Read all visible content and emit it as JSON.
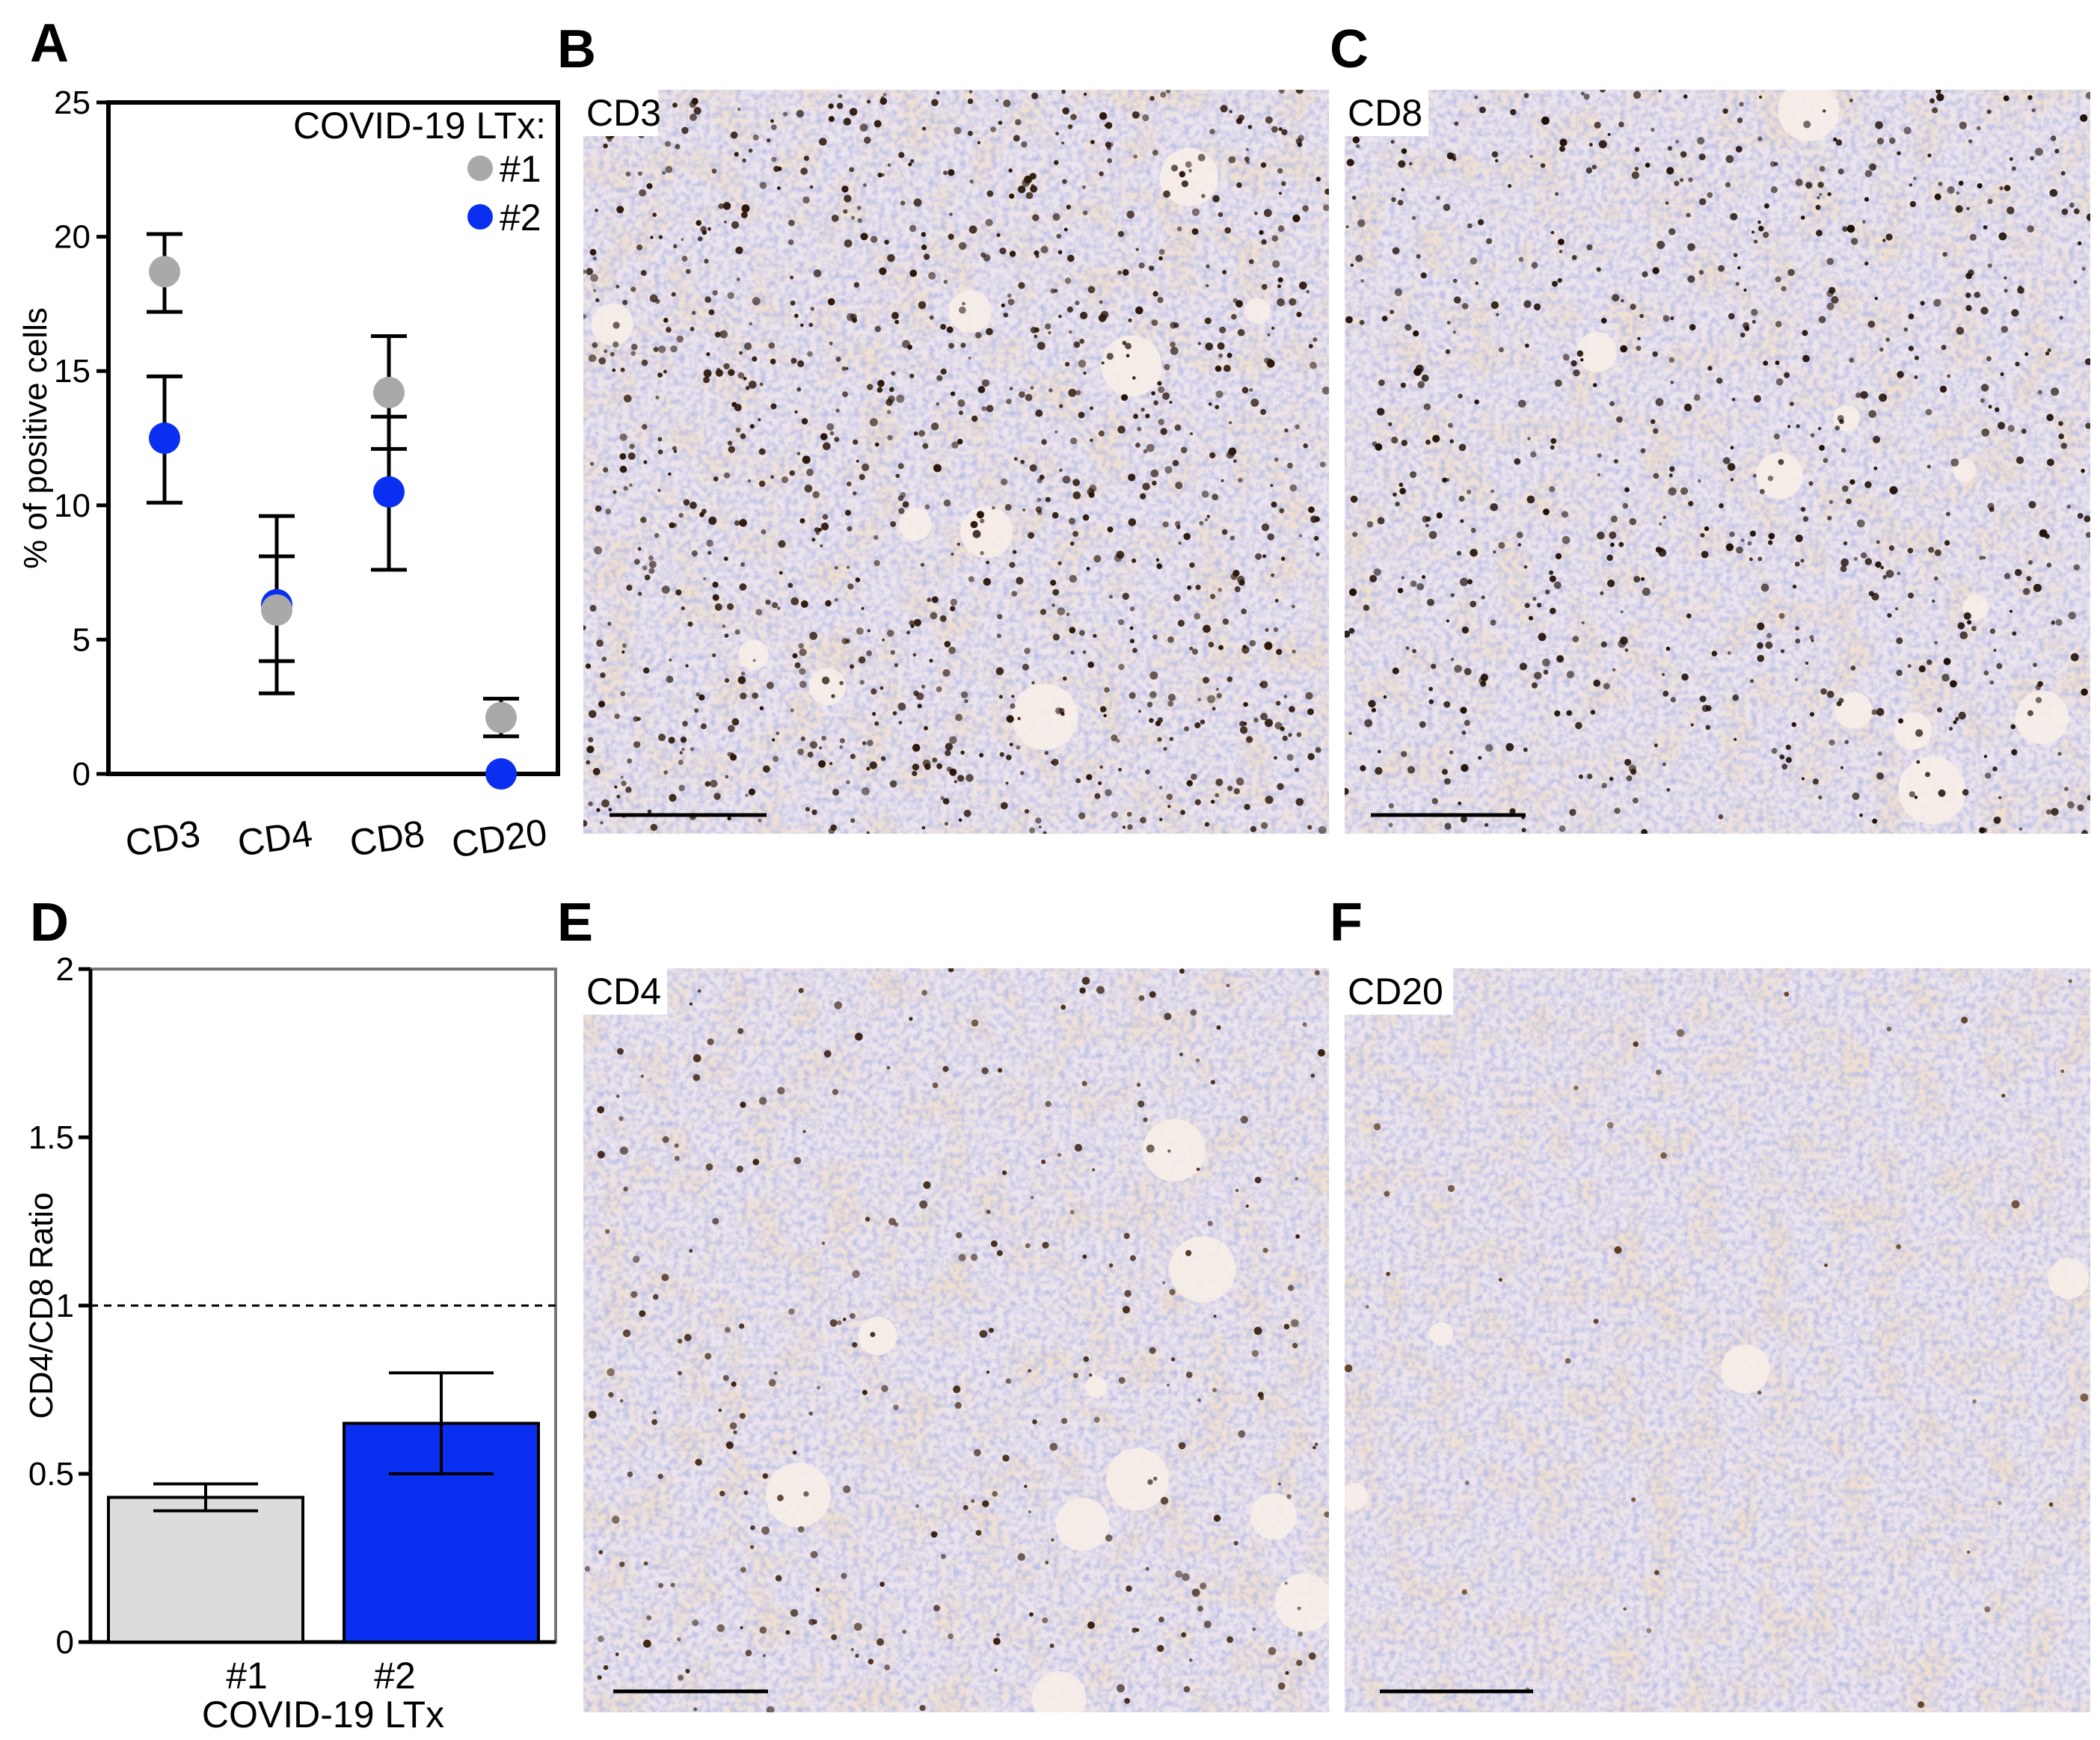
{
  "panels": {
    "A": "A",
    "B": "B",
    "C": "C",
    "D": "D",
    "E": "E",
    "F": "F"
  },
  "micrographs": [
    {
      "id": "B",
      "label": "CD3",
      "density": 0.22,
      "dark": "#2a1508",
      "seed": 11
    },
    {
      "id": "C",
      "label": "CD8",
      "density": 0.15,
      "dark": "#1e0e05",
      "seed": 23
    },
    {
      "id": "E",
      "label": "CD4",
      "density": 0.06,
      "dark": "#3a200e",
      "seed": 37
    },
    {
      "id": "F",
      "label": "CD20",
      "density": 0.008,
      "dark": "#5a3a1c",
      "seed": 53
    }
  ],
  "colors": {
    "series1": "#a9a9a9",
    "series2": "#0b2ff0",
    "bar1": "#dcdcdc",
    "bar2": "#0b2ff0",
    "tissue_base": "#ece4ec",
    "nuclei": "#7f86c7",
    "stroma": "#dcbfa4"
  },
  "chart_data": [
    {
      "panel": "A",
      "type": "scatter",
      "title": "",
      "xlabel": "",
      "ylabel": "% of positive cells",
      "categories": [
        "CD3",
        "CD4",
        "CD8",
        "CD20"
      ],
      "ylim": [
        0,
        25
      ],
      "yticks": [
        0,
        5,
        10,
        15,
        20,
        25
      ],
      "legend_title": "COVID-19 LTx:",
      "legend_position": "top-right",
      "series": [
        {
          "name": "#1",
          "values": [
            18.7,
            6.1,
            14.2,
            2.1
          ],
          "err_low": [
            17.2,
            4.2,
            12.1,
            1.4
          ],
          "err_high": [
            20.1,
            8.1,
            16.3,
            2.8
          ]
        },
        {
          "name": "#2",
          "values": [
            12.5,
            6.3,
            10.5,
            0.0
          ],
          "err_low": [
            10.1,
            3.0,
            7.6,
            0.0
          ],
          "err_high": [
            14.8,
            9.6,
            13.3,
            0.0
          ]
        }
      ]
    },
    {
      "panel": "D",
      "type": "bar",
      "title": "",
      "xlabel": "COVID-19 LTx",
      "ylabel": "CD4/CD8 Ratio",
      "categories": [
        "#1",
        "#2"
      ],
      "values": [
        0.43,
        0.65
      ],
      "err_low": [
        0.39,
        0.5
      ],
      "err_high": [
        0.47,
        0.8
      ],
      "ylim": [
        0,
        2
      ],
      "yticks": [
        0,
        0.5,
        1,
        1.5,
        2
      ],
      "ytick_labels": [
        "0",
        "0.5",
        "1",
        "1.5",
        "2"
      ],
      "reference_line": 1
    }
  ]
}
